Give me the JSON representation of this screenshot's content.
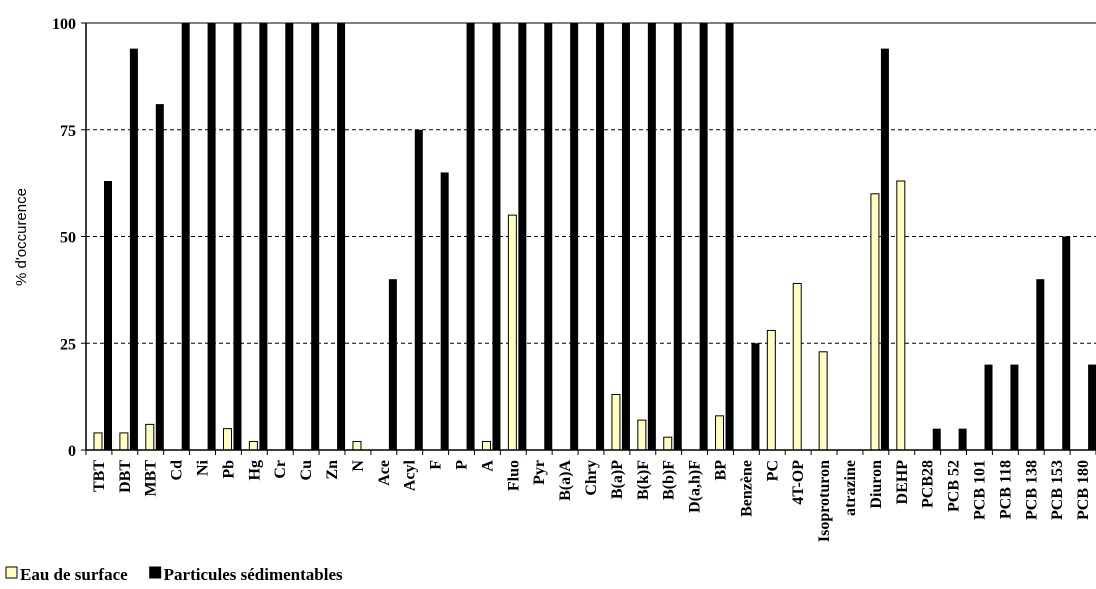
{
  "chart_data": {
    "type": "bar",
    "ylabel": "% d'occurence",
    "xlabel": "",
    "ylim": [
      0,
      100
    ],
    "yticks": [
      "0",
      "25",
      "50",
      "75",
      "100"
    ],
    "grid": "horizontal dashed",
    "legend_position": "bottom-left",
    "categories": [
      "TBT",
      "DBT",
      "MBT",
      "Cd",
      "Ni",
      "Pb",
      "Hg",
      "Cr",
      "Cu",
      "Zn",
      "N",
      "Ace",
      "Acyl",
      "F",
      "P",
      "A",
      "Fluo",
      "Pyr",
      "B(a)A",
      "Chry",
      "B(a)P",
      "B(k)F",
      "B(b)F",
      "D(a,h)F",
      "BP",
      "Benzène",
      "PC",
      "4T-OP",
      "Isoproturon",
      "atrazine",
      "Diuron",
      "DEHP",
      "PCB28",
      "PCB 52",
      "PCB 101",
      "PCB 118",
      "PCB 138",
      "PCB 153",
      "PCB 180"
    ],
    "series": [
      {
        "name": "Eau de surface",
        "color": "#FFFFC0",
        "values": [
          4,
          4,
          6,
          0,
          0,
          5,
          2,
          0,
          0,
          0,
          2,
          0,
          0,
          0,
          0,
          2,
          55,
          0,
          0,
          0,
          13,
          7,
          3,
          0,
          8,
          0,
          28,
          39,
          23,
          0,
          60,
          63,
          0,
          0,
          0,
          0,
          0,
          0,
          0
        ]
      },
      {
        "name": "Particules sédimentables",
        "color": "#000000",
        "values": [
          63,
          94,
          81,
          100,
          100,
          100,
          100,
          100,
          100,
          100,
          0,
          40,
          75,
          65,
          100,
          100,
          100,
          100,
          100,
          100,
          100,
          100,
          100,
          100,
          100,
          25,
          0,
          0,
          0,
          0,
          94,
          0,
          5,
          5,
          20,
          20,
          40,
          50,
          20
        ]
      }
    ]
  }
}
